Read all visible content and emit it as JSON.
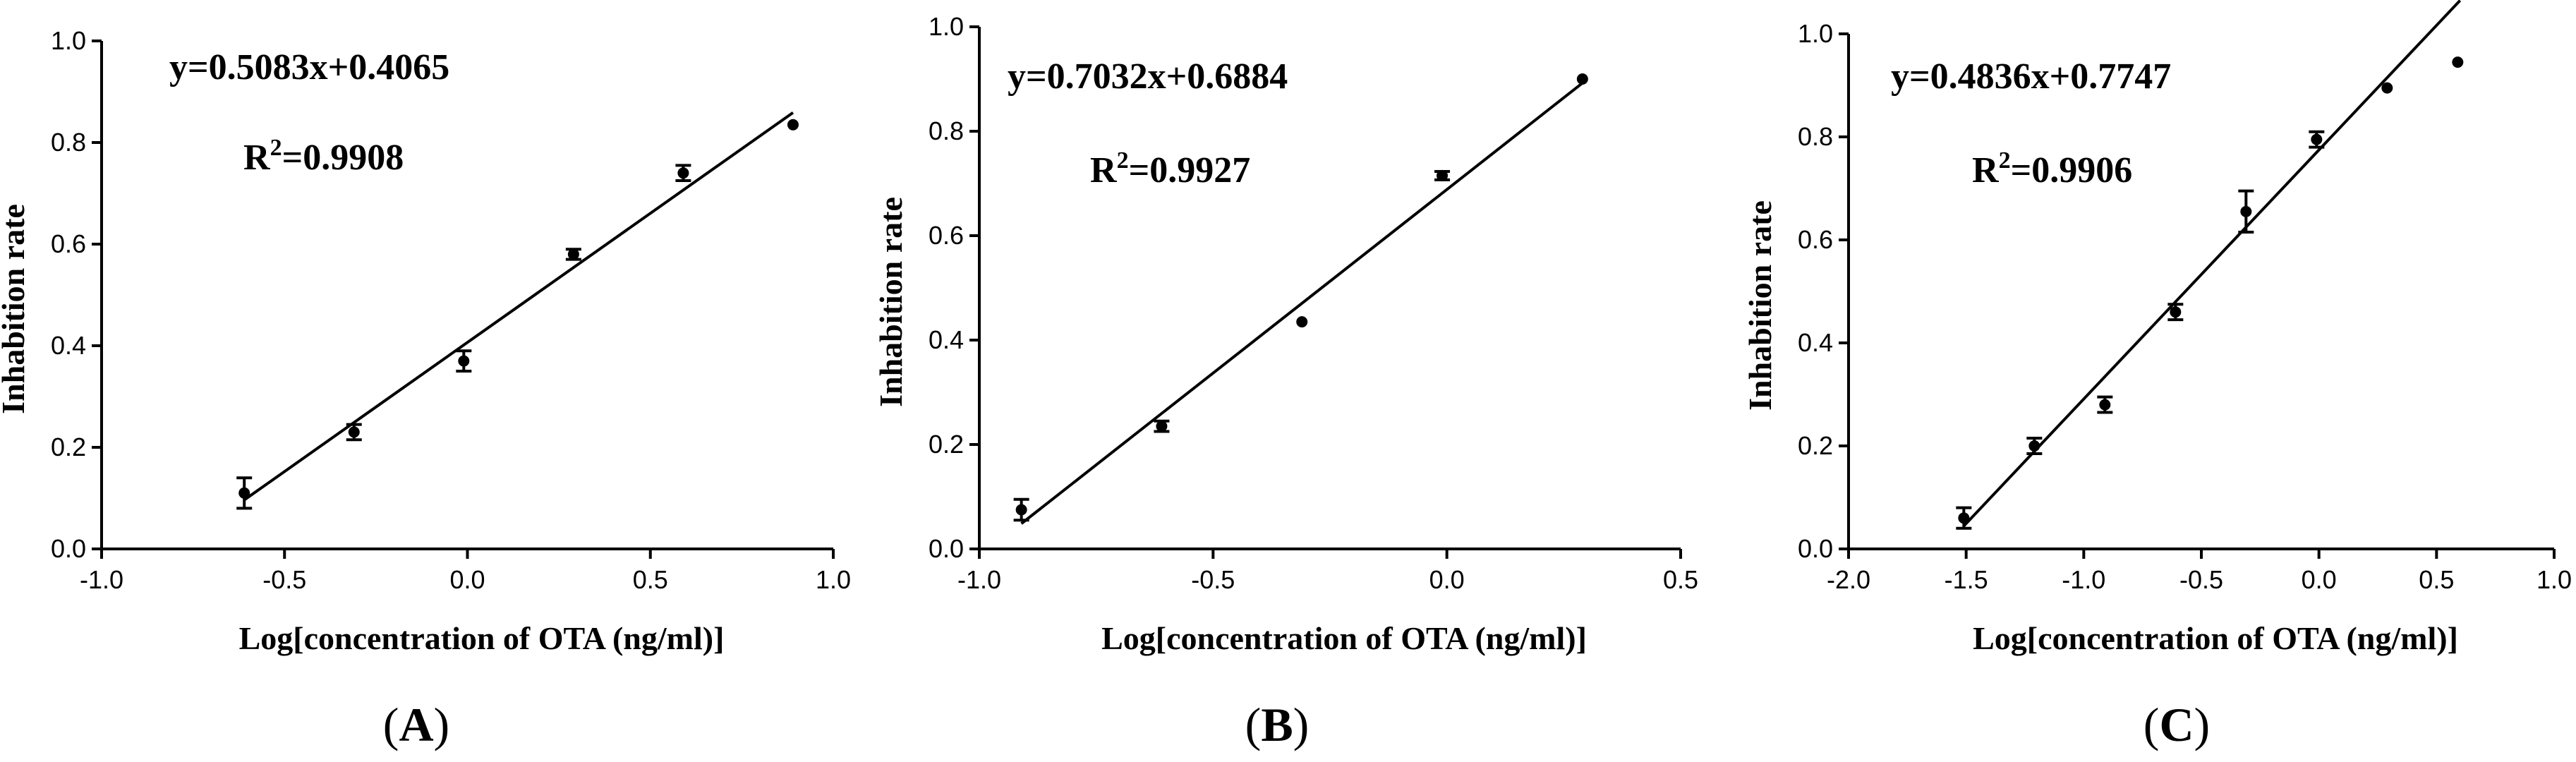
{
  "chart_data": [
    {
      "type": "scatter",
      "panel_label": "(A)",
      "xlabel": "Log[concentration of OTA (ng/ml)]",
      "ylabel": "Inhabition rate",
      "xlim": [
        -1.0,
        1.0
      ],
      "ylim": [
        0.0,
        1.0
      ],
      "xticks": [
        "-1.0",
        "-0.5",
        "0.0",
        "0.5",
        "1.0"
      ],
      "yticks": [
        "0.0",
        "0.2",
        "0.4",
        "0.6",
        "0.8",
        "1.0"
      ],
      "equation": "y=0.5083x+0.4065",
      "r2_label": "R",
      "r2_value": "=0.9908",
      "slope": 0.5083,
      "intercept": 0.4065,
      "points": [
        {
          "x": -0.61,
          "y": 0.11,
          "err": 0.03
        },
        {
          "x": -0.31,
          "y": 0.23,
          "err": 0.015
        },
        {
          "x": -0.01,
          "y": 0.37,
          "err": 0.02
        },
        {
          "x": 0.29,
          "y": 0.58,
          "err": 0.01
        },
        {
          "x": 0.59,
          "y": 0.74,
          "err": 0.015
        },
        {
          "x": 0.89,
          "y": 0.835,
          "err": 0
        }
      ],
      "fit_x": [
        -0.61,
        0.89
      ],
      "grid": false
    },
    {
      "type": "scatter",
      "panel_label": "(B)",
      "xlabel": "Log[concentration of OTA (ng/ml)]",
      "ylabel": "Inhabition rate",
      "xlim": [
        -1.0,
        0.5
      ],
      "ylim": [
        0.0,
        1.0
      ],
      "xticks": [
        "-1.0",
        "-0.5",
        "0.0",
        "0.5"
      ],
      "yticks": [
        "0.0",
        "0.2",
        "0.4",
        "0.6",
        "0.8",
        "1.0"
      ],
      "equation": "y=0.7032x+0.6884",
      "r2_label": "R",
      "r2_value": "=0.9927",
      "slope": 0.7032,
      "intercept": 0.6884,
      "points": [
        {
          "x": -0.91,
          "y": 0.075,
          "err": 0.02
        },
        {
          "x": -0.61,
          "y": 0.235,
          "err": 0.01
        },
        {
          "x": -0.31,
          "y": 0.435,
          "err": 0
        },
        {
          "x": -0.01,
          "y": 0.715,
          "err": 0.008
        },
        {
          "x": 0.29,
          "y": 0.9,
          "err": 0
        }
      ],
      "fit_x": [
        -0.91,
        0.29
      ],
      "grid": false
    },
    {
      "type": "scatter",
      "panel_label": "(C)",
      "xlabel": "Log[concentration of OTA (ng/ml)]",
      "ylabel": "Inhabition rate",
      "xlim": [
        -2.0,
        1.0
      ],
      "ylim": [
        0.0,
        1.0
      ],
      "xticks": [
        "-2.0",
        "-1.5",
        "-1.0",
        "-0.5",
        "0.0",
        "0.5",
        "1.0"
      ],
      "yticks": [
        "0.0",
        "0.2",
        "0.4",
        "0.6",
        "0.8",
        "1.0"
      ],
      "equation": "y=0.4836x+0.7747",
      "r2_label": "R",
      "r2_value": "=0.9906",
      "slope": 0.4836,
      "intercept": 0.7747,
      "points": [
        {
          "x": -1.51,
          "y": 0.06,
          "err": 0.02
        },
        {
          "x": -1.21,
          "y": 0.2,
          "err": 0.015
        },
        {
          "x": -0.91,
          "y": 0.28,
          "err": 0.015
        },
        {
          "x": -0.31,
          "y": 0.655,
          "err": 0.04
        },
        {
          "x": -0.61,
          "y": 0.46,
          "err": 0.015
        },
        {
          "x": -0.01,
          "y": 0.795,
          "err": 0.015
        },
        {
          "x": 0.29,
          "y": 0.895,
          "err": 0
        },
        {
          "x": 0.59,
          "y": 0.945,
          "err": 0
        }
      ],
      "fit_x": [
        -1.51,
        0.6
      ],
      "grid": false
    }
  ]
}
